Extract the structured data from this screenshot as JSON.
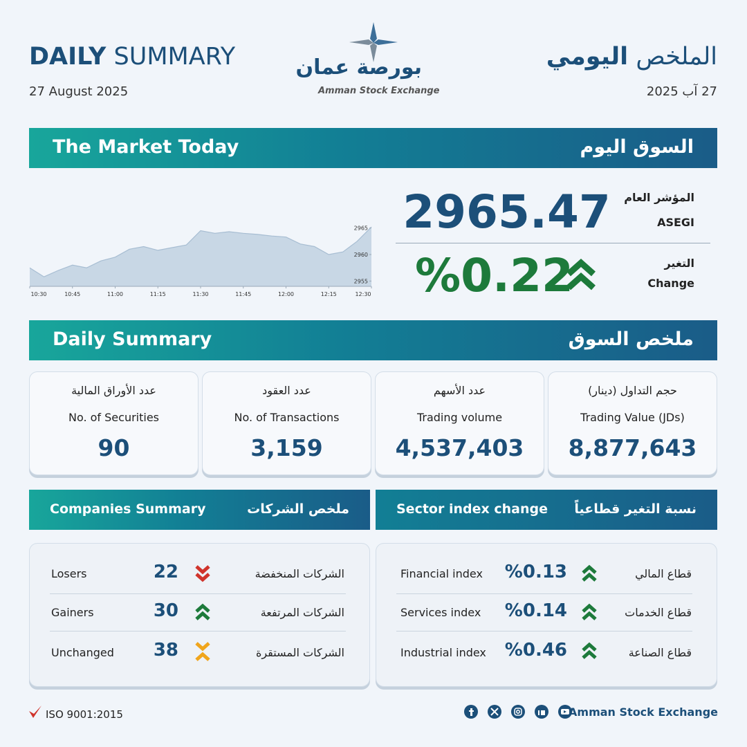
{
  "header": {
    "title_bold": "DAILY",
    "title_rest": "SUMMARY",
    "date": "27 August 2025",
    "title_ar_regular": "الملخص",
    "title_ar_bold": "اليومي",
    "date_ar": "27 آب 2025"
  },
  "logo": {
    "name_ar": "بورصة عمان",
    "name_en": "Amman Stock Exchange"
  },
  "market_today": {
    "title_en": "The Market Today",
    "title_ar": "السوق اليوم",
    "index_label_ar": "المؤشر العام",
    "index_label_en": "ASEGI",
    "index_value": "2965.47",
    "change_label_ar": "التغير",
    "change_label_en": "Change",
    "change_value": "%0.22"
  },
  "chart_data": {
    "type": "area",
    "color": "#c8d7e5",
    "line_color": "#a7bdd2",
    "categories": [
      "10:30",
      null,
      null,
      "10:45",
      null,
      null,
      "11:00",
      null,
      null,
      "11:15",
      null,
      null,
      "11:30",
      null,
      null,
      "11:45",
      null,
      null,
      "12:00",
      null,
      null,
      "12:15",
      null,
      null,
      "12:30"
    ],
    "values": [
      2957.5,
      2955.8,
      2957.0,
      2958.0,
      2957.5,
      2958.8,
      2959.5,
      2961.0,
      2961.5,
      2960.8,
      2961.3,
      2961.8,
      2964.5,
      2964.0,
      2964.3,
      2964.0,
      2963.8,
      2963.5,
      2963.3,
      2962.0,
      2961.5,
      2960.0,
      2960.5,
      2962.5,
      2965.2
    ],
    "ylim": [
      2954,
      2966
    ],
    "yticks": [
      2955,
      2960,
      2965
    ]
  },
  "daily_summary": {
    "title_en": "Daily Summary",
    "title_ar": "ملخص السوق",
    "cards": [
      {
        "label_ar": "عدد الأوراق المالية",
        "label_en": "No. of Securities",
        "value": "90"
      },
      {
        "label_ar": "عدد العقود",
        "label_en": "No. of Transactions",
        "value": "3,159"
      },
      {
        "label_ar": "عدد الأسهم",
        "label_en": "Trading volume",
        "value": "4,537,403"
      },
      {
        "label_ar": "حجم التداول (دينار)",
        "label_en": "Trading Value (JDs)",
        "value": "8,877,643"
      }
    ]
  },
  "companies": {
    "title_en": "Companies Summary",
    "title_ar": "ملخص الشركات",
    "rows": [
      {
        "label_en": "Losers",
        "value": "22",
        "label_ar": "الشركات المنخفضة"
      },
      {
        "label_en": "Gainers",
        "value": "30",
        "label_ar": "الشركات المرتفعة"
      },
      {
        "label_en": "Unchanged",
        "value": "38",
        "label_ar": "الشركات المستقرة"
      }
    ]
  },
  "sectors": {
    "title_en": "Sector index change",
    "title_ar": "نسبة التغير قطاعياً",
    "rows": [
      {
        "label_en": "Financial index",
        "value": "%0.13",
        "label_ar": "قطاع المالي"
      },
      {
        "label_en": "Services index",
        "value": "%0.14",
        "label_ar": "قطاع الخدمات"
      },
      {
        "label_en": "Industrial index",
        "value": "%0.46",
        "label_ar": "قطاع الصناعة"
      }
    ]
  },
  "footer": {
    "iso": "ISO 9001:2015",
    "org": "Amman Stock Exchange"
  }
}
